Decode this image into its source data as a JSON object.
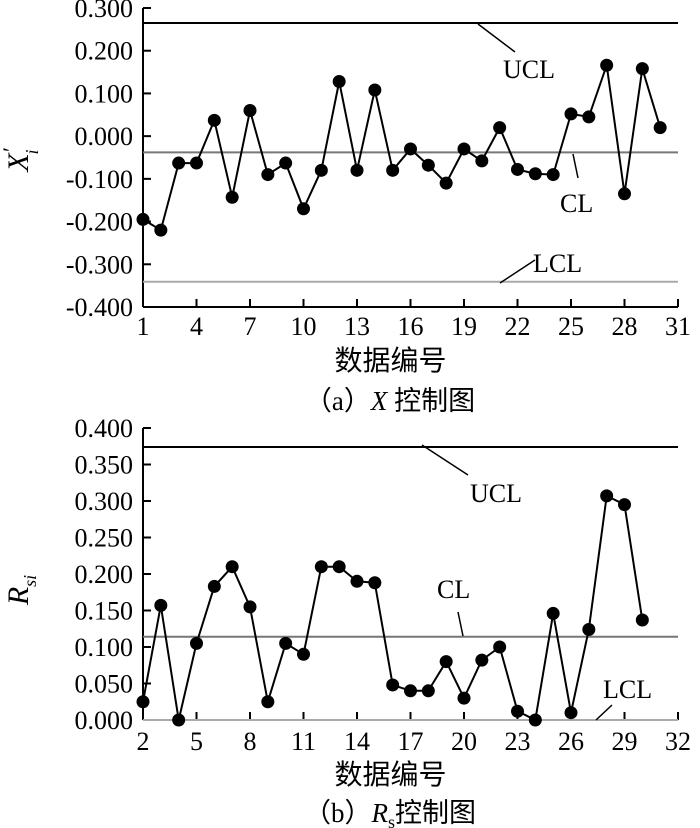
{
  "chart_data": [
    {
      "type": "line",
      "caption": "（a）X 控制图",
      "caption_prefix": "（a）",
      "caption_var": "X",
      "caption_suffix": " 控制图",
      "ylabel": "X",
      "ylabel_main": "X",
      "ylabel_prime": "′",
      "ylabel_sub": "i",
      "xlabel": "数据编号",
      "ylim": [
        -0.4,
        0.3
      ],
      "xlim": [
        1,
        31
      ],
      "y_ticks": [
        "0.300",
        "0.200",
        "0.100",
        "0.000",
        "-0.100",
        "-0.200",
        "-0.300",
        "-0.400"
      ],
      "y_tick_values": [
        0.3,
        0.2,
        0.1,
        0.0,
        -0.1,
        -0.2,
        -0.3,
        -0.4
      ],
      "x_ticks": [
        "1",
        "4",
        "7",
        "10",
        "13",
        "16",
        "19",
        "22",
        "25",
        "28",
        "31"
      ],
      "x_tick_values": [
        1,
        4,
        7,
        10,
        13,
        16,
        19,
        22,
        25,
        28,
        31
      ],
      "limits": [
        {
          "label": "UCL",
          "value": 0.265,
          "color": "#000000"
        },
        {
          "label": "CL",
          "value": -0.038,
          "color": "#777777"
        },
        {
          "label": "LCL",
          "value": -0.341,
          "color": "#aaaaaa"
        }
      ],
      "series": [
        {
          "x": [
            1,
            2,
            3,
            4,
            5,
            6,
            7,
            8,
            9,
            10,
            11,
            12,
            13,
            14,
            15,
            16,
            17,
            18,
            19,
            20,
            21,
            22,
            23,
            24,
            25,
            26,
            27,
            28,
            29,
            30
          ],
          "values": [
            -0.195,
            -0.22,
            -0.063,
            -0.063,
            0.037,
            -0.143,
            0.06,
            -0.09,
            -0.063,
            -0.17,
            -0.08,
            0.128,
            -0.08,
            0.108,
            -0.08,
            -0.03,
            -0.068,
            -0.11,
            -0.03,
            -0.058,
            0.02,
            -0.078,
            -0.088,
            -0.09,
            0.052,
            0.045,
            0.166,
            -0.135,
            0.158,
            0.02
          ]
        }
      ]
    },
    {
      "type": "line",
      "caption": "（b）Rs 控制图",
      "caption_prefix": "（b）",
      "caption_var": "R",
      "caption_var_sub": "s",
      "caption_suffix": "控制图",
      "ylabel": "Rsi",
      "ylabel_main": "R",
      "ylabel_sub": "si",
      "xlabel": "数据编号",
      "ylim": [
        0.0,
        0.4
      ],
      "xlim": [
        2,
        32
      ],
      "y_ticks": [
        "0.400",
        "0.350",
        "0.300",
        "0.250",
        "0.200",
        "0.150",
        "0.100",
        "0.050",
        "0.000"
      ],
      "y_tick_values": [
        0.4,
        0.35,
        0.3,
        0.25,
        0.2,
        0.15,
        0.1,
        0.05,
        0.0
      ],
      "x_ticks": [
        "2",
        "5",
        "8",
        "11",
        "14",
        "17",
        "20",
        "23",
        "26",
        "29",
        "32"
      ],
      "x_tick_values": [
        2,
        5,
        8,
        11,
        14,
        17,
        20,
        23,
        26,
        29,
        32
      ],
      "limits": [
        {
          "label": "UCL",
          "value": 0.374,
          "color": "#000000"
        },
        {
          "label": "CL",
          "value": 0.114,
          "color": "#777777"
        },
        {
          "label": "LCL",
          "value": 0.0,
          "color": "#aaaaaa"
        }
      ],
      "series": [
        {
          "x": [
            2,
            3,
            4,
            5,
            6,
            7,
            8,
            9,
            10,
            11,
            12,
            13,
            14,
            15,
            16,
            17,
            18,
            19,
            20,
            21,
            22,
            23,
            24,
            25,
            26,
            27,
            28,
            29,
            30
          ],
          "values": [
            0.025,
            0.157,
            0.0,
            0.105,
            0.183,
            0.21,
            0.155,
            0.025,
            0.105,
            0.09,
            0.21,
            0.21,
            0.19,
            0.188,
            0.048,
            0.04,
            0.04,
            0.08,
            0.03,
            0.082,
            0.1,
            0.012,
            0.0,
            0.146,
            0.01,
            0.124,
            0.307,
            0.295,
            0.137
          ]
        }
      ]
    }
  ]
}
